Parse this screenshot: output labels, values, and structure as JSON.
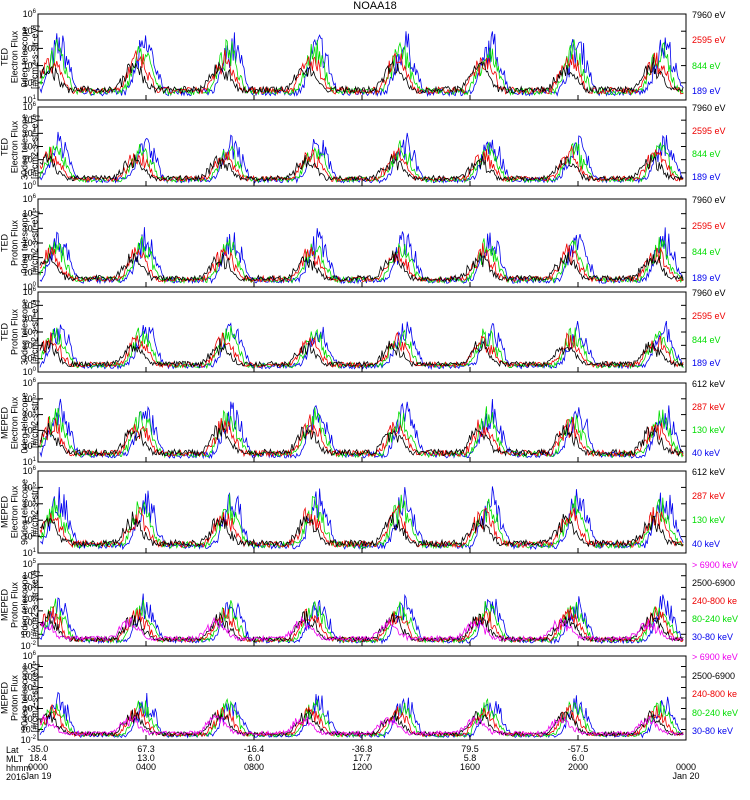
{
  "title": "NOAA18",
  "panels": [
    {
      "ylabel": [
        "TED",
        "Electron Flux",
        "0deg telescope",
        "[#/cm2-s-str-eV]"
      ],
      "ymin_exp": 1,
      "ymax_exp": 6,
      "legend": [
        {
          "text": "7960 eV",
          "color": "#000000"
        },
        {
          "text": "2595 eV",
          "color": "#ee0000"
        },
        {
          "text": "844 eV",
          "color": "#00dd00"
        },
        {
          "text": "189 eV",
          "color": "#0000ee"
        }
      ]
    },
    {
      "ylabel": [
        "TED",
        "Electron Flux",
        "30deg telescope",
        "[#/cm2-s-str-eV]"
      ],
      "ymin_exp": 0,
      "ymax_exp": 6,
      "legend": [
        {
          "text": "7960 eV",
          "color": "#000000"
        },
        {
          "text": "2595 eV",
          "color": "#ee0000"
        },
        {
          "text": "844 eV",
          "color": "#00dd00"
        },
        {
          "text": "189 eV",
          "color": "#0000ee"
        }
      ]
    },
    {
      "ylabel": [
        "TED",
        "Proton Flux",
        "0deg telescope",
        "[#/cm2-s-str-eV]"
      ],
      "ymin_exp": 0,
      "ymax_exp": 6,
      "legend": [
        {
          "text": "7960 eV",
          "color": "#000000"
        },
        {
          "text": "2595 eV",
          "color": "#ee0000"
        },
        {
          "text": "844 eV",
          "color": "#00dd00"
        },
        {
          "text": "189 eV",
          "color": "#0000ee"
        }
      ]
    },
    {
      "ylabel": [
        "TED",
        "Proton Flux",
        "30deg telescope",
        "[#/cm2-s-str-eV]"
      ],
      "ymin_exp": 0,
      "ymax_exp": 6,
      "legend": [
        {
          "text": "7960 eV",
          "color": "#000000"
        },
        {
          "text": "2595 eV",
          "color": "#ee0000"
        },
        {
          "text": "844 eV",
          "color": "#00dd00"
        },
        {
          "text": "189 eV",
          "color": "#0000ee"
        }
      ]
    },
    {
      "ylabel": [
        "MEPED",
        "Electron Flux",
        "0deg telescope",
        "[#/cm2-s-str]"
      ],
      "ymin_exp": 1,
      "ymax_exp": 6,
      "legend": [
        {
          "text": "612 keV",
          "color": "#000000"
        },
        {
          "text": "287 keV",
          "color": "#ee0000"
        },
        {
          "text": "130 keV",
          "color": "#00dd00"
        },
        {
          "text": "40 keV",
          "color": "#0000ee"
        }
      ]
    },
    {
      "ylabel": [
        "MEPED",
        "Electron Flux",
        "90deg telescope",
        "[#/cm2-s-str]"
      ],
      "ymin_exp": 1,
      "ymax_exp": 6,
      "legend": [
        {
          "text": "612 keV",
          "color": "#000000"
        },
        {
          "text": "287 keV",
          "color": "#ee0000"
        },
        {
          "text": "130 keV",
          "color": "#00dd00"
        },
        {
          "text": "40 keV",
          "color": "#0000ee"
        }
      ]
    },
    {
      "ylabel": [
        "MEPED",
        "Proton Flux",
        "0deg telescope",
        "[#/cm2-s-str-keV]"
      ],
      "ymin_exp": -2,
      "ymax_exp": 5,
      "legend": [
        {
          "text": "> 6900 keV",
          "color": "#ee00ee"
        },
        {
          "text": "2500-6900",
          "color": "#000000"
        },
        {
          "text": "240-800 ke",
          "color": "#ee0000"
        },
        {
          "text": "80-240 keV",
          "color": "#00dd00"
        },
        {
          "text": "30-80 keV",
          "color": "#0000ee"
        }
      ]
    },
    {
      "ylabel": [
        "MEPED",
        "Proton Flux",
        "90deg telescope",
        "[#/cm2-s-str-keV]"
      ],
      "ymin_exp": -2,
      "ymax_exp": 6,
      "legend": [
        {
          "text": "> 6900 keV",
          "color": "#ee00ee"
        },
        {
          "text": "2500-6900",
          "color": "#000000"
        },
        {
          "text": "240-800 ke",
          "color": "#ee0000"
        },
        {
          "text": "80-240 keV",
          "color": "#00dd00"
        },
        {
          "text": "30-80 keV",
          "color": "#0000ee"
        }
      ]
    }
  ],
  "xaxis": {
    "row_labels": [
      "Lat",
      "MLT",
      "hhmm",
      "2016"
    ],
    "ticks": [
      {
        "lat": "-35.0",
        "mlt": "18.4",
        "hhmm": "0000",
        "date": "Jan 19"
      },
      {
        "lat": "67.3",
        "mlt": "13.0",
        "hhmm": "0400",
        "date": ""
      },
      {
        "lat": "-16.4",
        "mlt": "6.0",
        "hhmm": "0800",
        "date": ""
      },
      {
        "lat": "-36.8",
        "mlt": "17.7",
        "hhmm": "1200",
        "date": ""
      },
      {
        "lat": "79.5",
        "mlt": "5.8",
        "hhmm": "1600",
        "date": ""
      },
      {
        "lat": "-57.5",
        "mlt": "6.0",
        "hhmm": "2000",
        "date": ""
      },
      {
        "lat": "",
        "mlt": "",
        "hhmm": "0000",
        "date": "Jan 20"
      }
    ]
  },
  "chart_data": {
    "type": "line",
    "title": "NOAA18",
    "x_range_hours": [
      0,
      24
    ],
    "x_tick_labels": [
      "0000",
      "0400",
      "0800",
      "1200",
      "1600",
      "2000",
      "0000"
    ],
    "y_scale": "log",
    "description_of_series": "Time series of particle flux in 8 stacked panels; each panel shows several energy channels as colored traces",
    "panels": [
      {
        "name": "TED Electron Flux 0deg telescope",
        "y_range": [
          "1e1",
          "1e6"
        ],
        "series": [
          "7960 eV",
          "2595 eV",
          "844 eV",
          "189 eV"
        ]
      },
      {
        "name": "TED Electron Flux 30deg telescope",
        "y_range": [
          "1e0",
          "1e6"
        ],
        "series": [
          "7960 eV",
          "2595 eV",
          "844 eV",
          "189 eV"
        ]
      },
      {
        "name": "TED Proton Flux 0deg telescope",
        "y_range": [
          "1e0",
          "1e6"
        ],
        "series": [
          "7960 eV",
          "2595 eV",
          "844 eV",
          "189 eV"
        ]
      },
      {
        "name": "TED Proton Flux 30deg telescope",
        "y_range": [
          "1e0",
          "1e6"
        ],
        "series": [
          "7960 eV",
          "2595 eV",
          "844 eV",
          "189 eV"
        ]
      },
      {
        "name": "MEPED Electron Flux 0deg telescope",
        "y_range": [
          "1e1",
          "1e6"
        ],
        "series": [
          "612 keV",
          "287 keV",
          "130 keV",
          "40 keV"
        ]
      },
      {
        "name": "MEPED Electron Flux 90deg telescope",
        "y_range": [
          "1e1",
          "1e6"
        ],
        "series": [
          "612 keV",
          "287 keV",
          "130 keV",
          "40 keV"
        ]
      },
      {
        "name": "MEPED Proton Flux 0deg telescope",
        "y_range": [
          "1e-2",
          "1e5"
        ],
        "series": [
          "> 6900 keV",
          "2500-6900",
          "240-800 ke",
          "80-240 keV",
          "30-80 keV"
        ]
      },
      {
        "name": "MEPED Proton Flux 90deg telescope",
        "y_range": [
          "1e-2",
          "1e6"
        ],
        "series": [
          "> 6900 keV",
          "2500-6900",
          "240-800 ke",
          "80-240 keV",
          "30-80 keV"
        ]
      }
    ]
  }
}
